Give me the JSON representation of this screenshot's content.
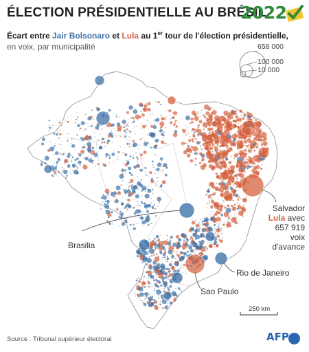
{
  "header": {
    "title": "ÉLECTION PRÉSIDENTIELLE AU BRÉSIL",
    "year": "2022"
  },
  "subtitle": {
    "part1": "Écart entre ",
    "candidate_blue": "Jair Bolsonaro",
    "part2": " et ",
    "candidate_red": "Lula",
    "part3": " au 1",
    "sup": "er",
    "part4": " tour de l'élection présidentielle,",
    "line2": "en voix, par municipalité"
  },
  "legend": {
    "sizes": [
      "658 000",
      "100 000",
      "10 000"
    ]
  },
  "annotations": {
    "salvador_city": "Salvador",
    "salvador_lula": "Lula",
    "salvador_avec": " avec",
    "salvador_votes": "657 919 voix",
    "salvador_tail": "d'avance",
    "brasilia": "Brasilia",
    "rio": "Rio de Janeiro",
    "sao_paulo": "Sao Paulo"
  },
  "scale": {
    "label": "250 km"
  },
  "source": "Source : Tribunal supérieur électoral",
  "credit": "AFP",
  "colors": {
    "bolsonaro": "#3f74a8",
    "lula": "#d4623f",
    "year": "#2f8a3a",
    "afp": "#2a66b0"
  }
}
